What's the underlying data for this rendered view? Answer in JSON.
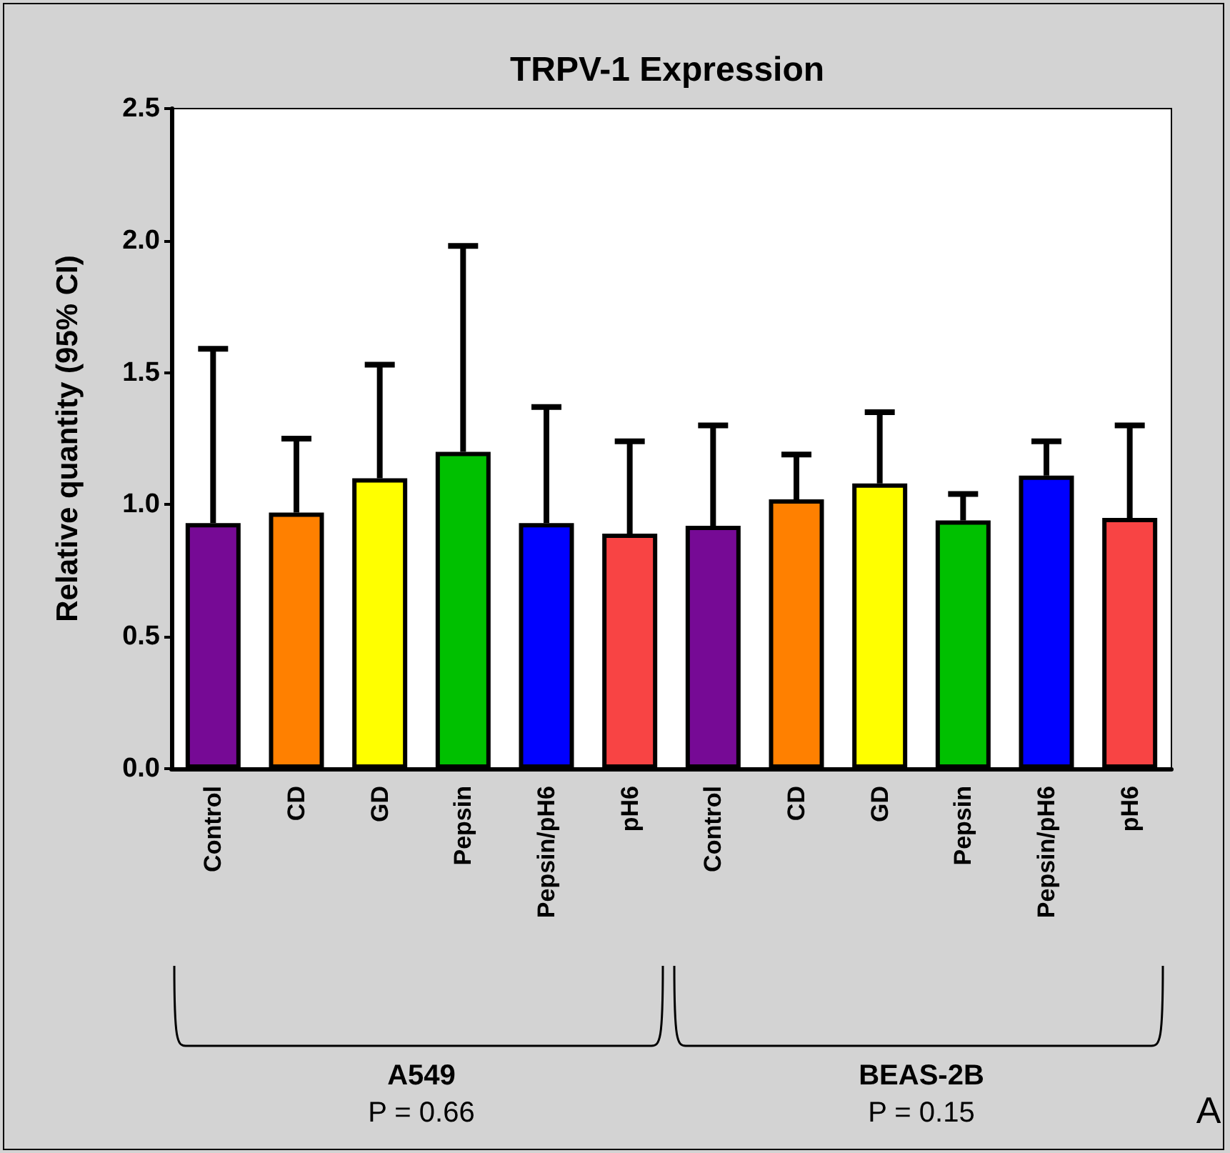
{
  "chart_data": {
    "type": "bar",
    "title": "TRPV-1 Expression",
    "ylabel": "Relative quantity (95% CI)",
    "categories": [
      "Control",
      "CD",
      "GD",
      "Pepsin",
      "Pepsin/pH6",
      "pH6",
      "Control",
      "CD",
      "GD",
      "Pepsin",
      "Pepsin/pH6",
      "pH6"
    ],
    "values": [
      0.93,
      0.97,
      1.1,
      1.2,
      0.93,
      0.89,
      0.92,
      1.02,
      1.08,
      0.94,
      1.11,
      0.95
    ],
    "colors": [
      "#760a95",
      "#ff8000",
      "#ffff00",
      "#00c000",
      "#0000ff",
      "#f84444",
      "#760a95",
      "#ff8000",
      "#ffff00",
      "#00c000",
      "#0000ff",
      "#f84444"
    ],
    "errors": [
      [
        0.93,
        1.59
      ],
      [
        0.97,
        1.25
      ],
      [
        1.1,
        1.53
      ],
      [
        1.2,
        1.98
      ],
      [
        0.93,
        1.37
      ],
      [
        0.89,
        1.24
      ],
      [
        0.92,
        1.3
      ],
      [
        1.02,
        1.19
      ],
      [
        1.08,
        1.35
      ],
      [
        0.94,
        1.04
      ],
      [
        1.11,
        1.24
      ],
      [
        0.95,
        1.3
      ]
    ],
    "ylim": [
      0,
      2.5
    ],
    "yticks": [
      {
        "value": 0,
        "label": "0.0"
      },
      {
        "value": 0.5,
        "label": "0.5"
      },
      {
        "value": 1,
        "label": "1.0"
      },
      {
        "value": 1.5,
        "label": "1.5"
      },
      {
        "value": 2,
        "label": "2.0"
      },
      {
        "value": 2.5,
        "label": "2.5"
      }
    ],
    "grid": false,
    "annotations": [
      "A549",
      "P = 0.66",
      "BEAS-2B",
      "P = 0.15",
      "A"
    ]
  }
}
